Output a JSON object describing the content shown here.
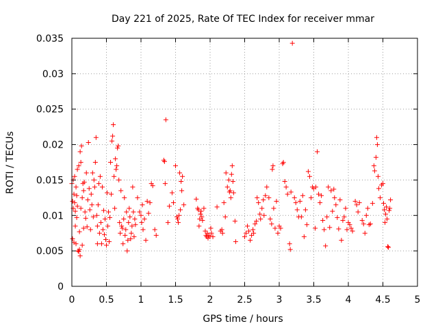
{
  "chart_data": {
    "type": "scatter",
    "title": "Day 221 of 2025, Rate Of TEC Index for receiver mmar",
    "xlabel": "GPS time / hours",
    "ylabel": "ROTI / TECUs",
    "xlim": [
      0,
      5
    ],
    "ylim": [
      0,
      0.035
    ],
    "x_ticks": [
      0,
      0.5,
      1,
      1.5,
      2,
      2.5,
      3,
      3.5,
      4,
      4.5,
      5
    ],
    "x_tick_labels": [
      "0",
      "0.5",
      "1",
      "1.5",
      "2",
      "2.5",
      "3",
      "3.5",
      "4",
      "4.5",
      "5"
    ],
    "y_ticks": [
      0,
      0.005,
      0.01,
      0.015,
      0.02,
      0.025,
      0.03,
      0.035
    ],
    "y_tick_labels": [
      "0",
      "0.005",
      "0.01",
      "0.015",
      "0.02",
      "0.025",
      "0.03",
      "0.035"
    ],
    "grid": true,
    "marker": "+",
    "color": "#ff0000",
    "series": [
      {
        "name": "ROTI",
        "points": [
          [
            0.0,
            0.0145
          ],
          [
            0.01,
            0.012
          ],
          [
            0.01,
            0.0067
          ],
          [
            0.02,
            0.011
          ],
          [
            0.02,
            0.015
          ],
          [
            0.03,
            0.013
          ],
          [
            0.03,
            0.0062
          ],
          [
            0.04,
            0.0118
          ],
          [
            0.04,
            0.0155
          ],
          [
            0.05,
            0.0106
          ],
          [
            0.05,
            0.0085
          ],
          [
            0.06,
            0.014
          ],
          [
            0.06,
            0.006
          ],
          [
            0.07,
            0.0128
          ],
          [
            0.07,
            0.0097
          ],
          [
            0.08,
            0.0165
          ],
          [
            0.08,
            0.0113
          ],
          [
            0.09,
            0.005
          ],
          [
            0.1,
            0.0049
          ],
          [
            0.1,
            0.017
          ],
          [
            0.11,
            0.0077
          ],
          [
            0.11,
            0.0052
          ],
          [
            0.12,
            0.0043
          ],
          [
            0.12,
            0.019
          ],
          [
            0.13,
            0.011
          ],
          [
            0.13,
            0.0175
          ],
          [
            0.14,
            0.0198
          ],
          [
            0.15,
            0.0058
          ],
          [
            0.15,
            0.0125
          ],
          [
            0.16,
            0.0145
          ],
          [
            0.17,
            0.0082
          ],
          [
            0.17,
            0.0135
          ],
          [
            0.18,
            0.0147
          ],
          [
            0.19,
            0.0105
          ],
          [
            0.2,
            0.0096
          ],
          [
            0.21,
            0.016
          ],
          [
            0.22,
            0.0084
          ],
          [
            0.23,
            0.0122
          ],
          [
            0.24,
            0.0203
          ],
          [
            0.25,
            0.0138
          ],
          [
            0.26,
            0.0108
          ],
          [
            0.27,
            0.008
          ],
          [
            0.28,
            0.013
          ],
          [
            0.29,
            0.0115
          ],
          [
            0.3,
            0.016
          ],
          [
            0.31,
            0.0098
          ],
          [
            0.32,
            0.015
          ],
          [
            0.33,
            0.014
          ],
          [
            0.34,
            0.0175
          ],
          [
            0.35,
            0.021
          ],
          [
            0.36,
            0.01
          ],
          [
            0.37,
            0.0085
          ],
          [
            0.37,
            0.006
          ],
          [
            0.38,
            0.0115
          ],
          [
            0.39,
            0.0145
          ],
          [
            0.4,
            0.0075
          ],
          [
            0.41,
            0.0155
          ],
          [
            0.42,
            0.009
          ],
          [
            0.43,
            0.006
          ],
          [
            0.44,
            0.014
          ],
          [
            0.45,
            0.008
          ],
          [
            0.46,
            0.0107
          ],
          [
            0.47,
            0.0073
          ],
          [
            0.48,
            0.0095
          ],
          [
            0.49,
            0.0066
          ],
          [
            0.5,
            0.0058
          ],
          [
            0.51,
            0.0132
          ],
          [
            0.52,
            0.0085
          ],
          [
            0.53,
            0.0105
          ],
          [
            0.54,
            0.0063
          ],
          [
            0.55,
            0.0097
          ],
          [
            0.56,
            0.0175
          ],
          [
            0.57,
            0.013
          ],
          [
            0.58,
            0.0205
          ],
          [
            0.59,
            0.0212
          ],
          [
            0.6,
            0.0228
          ],
          [
            0.61,
            0.0155
          ],
          [
            0.62,
            0.011
          ],
          [
            0.63,
            0.018
          ],
          [
            0.64,
            0.0165
          ],
          [
            0.65,
            0.017
          ],
          [
            0.66,
            0.0195
          ],
          [
            0.67,
            0.0198
          ],
          [
            0.68,
            0.015
          ],
          [
            0.69,
            0.009
          ],
          [
            0.7,
            0.0075
          ],
          [
            0.71,
            0.0135
          ],
          [
            0.72,
            0.0085
          ],
          [
            0.73,
            0.0082
          ],
          [
            0.74,
            0.006
          ],
          [
            0.75,
            0.0095
          ],
          [
            0.76,
            0.0125
          ],
          [
            0.77,
            0.0072
          ],
          [
            0.78,
            0.008
          ],
          [
            0.79,
            0.0105
          ],
          [
            0.8,
            0.005
          ],
          [
            0.81,
            0.0065
          ],
          [
            0.82,
            0.009
          ],
          [
            0.83,
            0.011
          ],
          [
            0.84,
            0.0098
          ],
          [
            0.85,
            0.0067
          ],
          [
            0.86,
            0.0075
          ],
          [
            0.87,
            0.0085
          ],
          [
            0.88,
            0.014
          ],
          [
            0.89,
            0.0105
          ],
          [
            0.9,
            0.007
          ],
          [
            0.91,
            0.0095
          ],
          [
            0.92,
            0.0087
          ],
          [
            0.95,
            0.0125
          ],
          [
            0.98,
            0.0105
          ],
          [
            1.0,
            0.01
          ],
          [
            1.01,
            0.009
          ],
          [
            1.02,
            0.0115
          ],
          [
            1.03,
            0.008
          ],
          [
            1.05,
            0.0095
          ],
          [
            1.07,
            0.0065
          ],
          [
            1.09,
            0.012
          ],
          [
            1.11,
            0.0103
          ],
          [
            1.13,
            0.0118
          ],
          [
            1.15,
            0.0145
          ],
          [
            1.17,
            0.0142
          ],
          [
            1.2,
            0.008
          ],
          [
            1.22,
            0.0072
          ],
          [
            1.33,
            0.0178
          ],
          [
            1.34,
            0.0176
          ],
          [
            1.35,
            0.0145
          ],
          [
            1.36,
            0.0235
          ],
          [
            1.39,
            0.009
          ],
          [
            1.41,
            0.0113
          ],
          [
            1.45,
            0.0132
          ],
          [
            1.47,
            0.0118
          ],
          [
            1.5,
            0.017
          ],
          [
            1.52,
            0.0098
          ],
          [
            1.53,
            0.0095
          ],
          [
            1.54,
            0.009
          ],
          [
            1.55,
            0.01
          ],
          [
            1.56,
            0.016
          ],
          [
            1.57,
            0.0108
          ],
          [
            1.58,
            0.0148
          ],
          [
            1.59,
            0.0135
          ],
          [
            1.6,
            0.0155
          ],
          [
            1.62,
            0.0115
          ],
          [
            1.8,
            0.0123
          ],
          [
            1.82,
            0.011
          ],
          [
            1.83,
            0.0108
          ],
          [
            1.84,
            0.0085
          ],
          [
            1.85,
            0.0095
          ],
          [
            1.86,
            0.0102
          ],
          [
            1.87,
            0.0106
          ],
          [
            1.88,
            0.0098
          ],
          [
            1.89,
            0.0093
          ],
          [
            1.91,
            0.011
          ],
          [
            1.93,
            0.0078
          ],
          [
            1.94,
            0.0072
          ],
          [
            1.95,
            0.007
          ],
          [
            1.96,
            0.0075
          ],
          [
            1.97,
            0.0068
          ],
          [
            1.98,
            0.0072
          ],
          [
            2.0,
            0.007
          ],
          [
            2.01,
            0.0082
          ],
          [
            2.02,
            0.0075
          ],
          [
            2.04,
            0.007
          ],
          [
            2.1,
            0.0112
          ],
          [
            2.15,
            0.0078
          ],
          [
            2.17,
            0.008
          ],
          [
            2.18,
            0.0075
          ],
          [
            2.2,
            0.0118
          ],
          [
            2.22,
            0.0098
          ],
          [
            2.23,
            0.016
          ],
          [
            2.25,
            0.014
          ],
          [
            2.27,
            0.015
          ],
          [
            2.28,
            0.0133
          ],
          [
            2.29,
            0.0135
          ],
          [
            2.3,
            0.0125
          ],
          [
            2.31,
            0.0158
          ],
          [
            2.32,
            0.017
          ],
          [
            2.33,
            0.0148
          ],
          [
            2.34,
            0.0132
          ],
          [
            2.36,
            0.0092
          ],
          [
            2.37,
            0.0063
          ],
          [
            2.5,
            0.007
          ],
          [
            2.52,
            0.0075
          ],
          [
            2.54,
            0.0085
          ],
          [
            2.56,
            0.0078
          ],
          [
            2.58,
            0.0065
          ],
          [
            2.6,
            0.0072
          ],
          [
            2.62,
            0.008
          ],
          [
            2.63,
            0.0075
          ],
          [
            2.65,
            0.0088
          ],
          [
            2.67,
            0.0092
          ],
          [
            2.68,
            0.0125
          ],
          [
            2.7,
            0.0118
          ],
          [
            2.72,
            0.0102
          ],
          [
            2.73,
            0.0095
          ],
          [
            2.75,
            0.011
          ],
          [
            2.77,
            0.0122
          ],
          [
            2.78,
            0.01
          ],
          [
            2.8,
            0.0128
          ],
          [
            2.82,
            0.014
          ],
          [
            2.85,
            0.0125
          ],
          [
            2.87,
            0.0095
          ],
          [
            2.89,
            0.0088
          ],
          [
            2.9,
            0.0165
          ],
          [
            2.91,
            0.017
          ],
          [
            2.92,
            0.011
          ],
          [
            2.94,
            0.0082
          ],
          [
            2.96,
            0.012
          ],
          [
            2.98,
            0.0075
          ],
          [
            3.0,
            0.0085
          ],
          [
            3.02,
            0.0082
          ],
          [
            3.05,
            0.0173
          ],
          [
            3.06,
            0.0175
          ],
          [
            3.08,
            0.0148
          ],
          [
            3.1,
            0.014
          ],
          [
            3.12,
            0.013
          ],
          [
            3.15,
            0.006
          ],
          [
            3.16,
            0.0052
          ],
          [
            3.17,
            0.0133
          ],
          [
            3.19,
            0.0343
          ],
          [
            3.22,
            0.0125
          ],
          [
            3.24,
            0.0118
          ],
          [
            3.26,
            0.0108
          ],
          [
            3.28,
            0.0098
          ],
          [
            3.3,
            0.012
          ],
          [
            3.32,
            0.0098
          ],
          [
            3.34,
            0.0128
          ],
          [
            3.36,
            0.007
          ],
          [
            3.38,
            0.0108
          ],
          [
            3.4,
            0.0087
          ],
          [
            3.42,
            0.0162
          ],
          [
            3.44,
            0.0155
          ],
          [
            3.46,
            0.0125
          ],
          [
            3.48,
            0.014
          ],
          [
            3.5,
            0.0138
          ],
          [
            3.52,
            0.0082
          ],
          [
            3.53,
            0.014
          ],
          [
            3.55,
            0.019
          ],
          [
            3.57,
            0.013
          ],
          [
            3.59,
            0.0118
          ],
          [
            3.61,
            0.0128
          ],
          [
            3.63,
            0.0093
          ],
          [
            3.65,
            0.008
          ],
          [
            3.67,
            0.0057
          ],
          [
            3.69,
            0.0098
          ],
          [
            3.71,
            0.014
          ],
          [
            3.73,
            0.0083
          ],
          [
            3.75,
            0.0135
          ],
          [
            3.77,
            0.0106
          ],
          [
            3.79,
            0.0137
          ],
          [
            3.8,
            0.0125
          ],
          [
            3.82,
            0.0115
          ],
          [
            3.84,
            0.0097
          ],
          [
            3.86,
            0.0081
          ],
          [
            3.88,
            0.0122
          ],
          [
            3.9,
            0.0065
          ],
          [
            3.92,
            0.0093
          ],
          [
            3.94,
            0.0098
          ],
          [
            3.96,
            0.011
          ],
          [
            3.98,
            0.008
          ],
          [
            4.0,
            0.009
          ],
          [
            4.02,
            0.0087
          ],
          [
            4.04,
            0.0082
          ],
          [
            4.06,
            0.0078
          ],
          [
            4.1,
            0.012
          ],
          [
            4.12,
            0.0115
          ],
          [
            4.14,
            0.0105
          ],
          [
            4.16,
            0.0118
          ],
          [
            4.2,
            0.0093
          ],
          [
            4.22,
            0.0088
          ],
          [
            4.24,
            0.0075
          ],
          [
            4.26,
            0.01
          ],
          [
            4.28,
            0.011
          ],
          [
            4.3,
            0.0087
          ],
          [
            4.32,
            0.0088
          ],
          [
            4.35,
            0.0117
          ],
          [
            4.37,
            0.017
          ],
          [
            4.38,
            0.0163
          ],
          [
            4.4,
            0.0182
          ],
          [
            4.41,
            0.021
          ],
          [
            4.42,
            0.02
          ],
          [
            4.43,
            0.0155
          ],
          [
            4.44,
            0.0138
          ],
          [
            4.46,
            0.0125
          ],
          [
            4.48,
            0.0143
          ],
          [
            4.5,
            0.0145
          ],
          [
            4.51,
            0.0117
          ],
          [
            4.52,
            0.0108
          ],
          [
            4.53,
            0.009
          ],
          [
            4.54,
            0.0102
          ],
          [
            4.55,
            0.0112
          ],
          [
            4.56,
            0.0095
          ],
          [
            4.57,
            0.0056
          ],
          [
            4.58,
            0.0055
          ],
          [
            4.59,
            0.0107
          ],
          [
            4.6,
            0.011
          ],
          [
            4.61,
            0.0122
          ]
        ]
      }
    ]
  }
}
